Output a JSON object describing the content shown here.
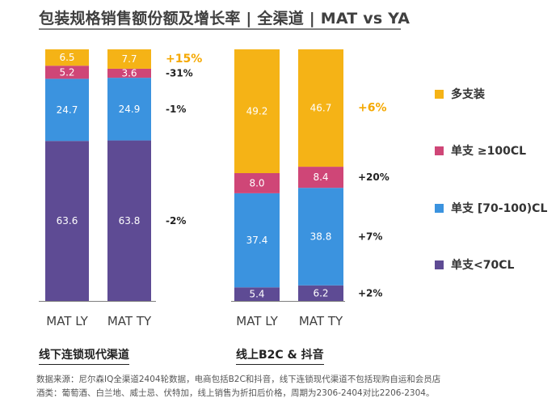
{
  "title": "包装规格销售额份额及增长率 | 全渠道 | MAT vs YA",
  "chart_data": {
    "type": "bar",
    "stacked": true,
    "unit": "%",
    "groups": [
      {
        "name": "线下连锁现代渠道",
        "categories": [
          "MAT LY",
          "MAT TY"
        ],
        "series": [
          {
            "name": "单支<70CL",
            "values": [
              63.6,
              63.8
            ],
            "growth": "-2%"
          },
          {
            "name": "单支 [70-100)CL",
            "values": [
              24.7,
              24.9
            ],
            "growth": "-1%"
          },
          {
            "name": "单支 ≥100CL",
            "values": [
              5.2,
              3.6
            ],
            "growth": "-31%"
          },
          {
            "name": "多支装",
            "values": [
              6.5,
              7.7
            ],
            "growth": "+15%"
          }
        ]
      },
      {
        "name": "线上B2C & 抖音",
        "categories": [
          "MAT LY",
          "MAT TY"
        ],
        "series": [
          {
            "name": "单支<70CL",
            "values": [
              5.4,
              6.2
            ],
            "growth": "+2%"
          },
          {
            "name": "单支 [70-100)CL",
            "values": [
              37.4,
              38.8
            ],
            "growth": "+7%"
          },
          {
            "name": "单支 ≥100CL",
            "values": [
              8.0,
              8.4
            ],
            "growth": "+20%"
          },
          {
            "name": "多支装",
            "values": [
              49.2,
              46.7
            ],
            "growth": "+6%"
          }
        ]
      }
    ],
    "ylim": [
      0,
      100
    ],
    "legend_position": "right",
    "grid": false
  },
  "legend": [
    {
      "label": "多支装",
      "color": "#f5b316"
    },
    {
      "label": "单支 ≥100CL",
      "color": "#cf4677"
    },
    {
      "label": "单支 [70-100)CL",
      "color": "#3b93df"
    },
    {
      "label": "单支<70CL",
      "color": "#5e4b94"
    }
  ],
  "colors": {
    "单支<70CL": "#5e4b94",
    "单支 [70-100)CL": "#3b93df",
    "单支 ≥100CL": "#cf4677",
    "多支装": "#f5b316",
    "highlight": "#f5a800"
  },
  "footnotes": [
    "数据来源：尼尔森IQ全渠道2404轮数据，电商包括B2C和抖音，线下连锁现代渠道不包括现购自运和会员店",
    "酒类：葡萄酒、白兰地、威士忌、伏特加，线上销售为折扣后价格，周期为2306-2404对比2206-2304。"
  ]
}
